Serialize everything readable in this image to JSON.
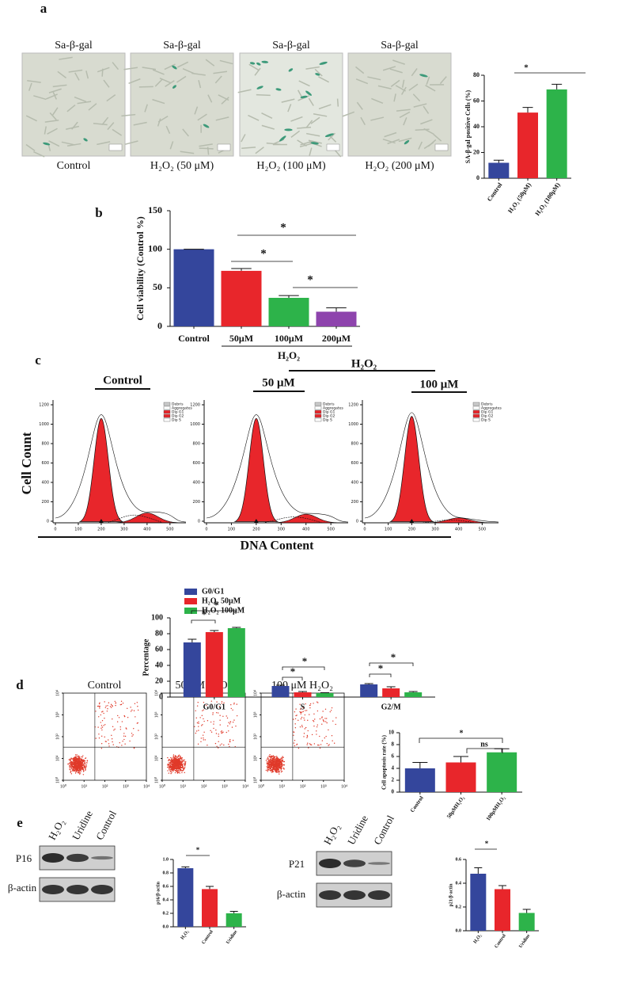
{
  "panels": {
    "a": {
      "label": "a",
      "images": [
        {
          "title": "Sa-β-gal",
          "caption": "Control"
        },
        {
          "title": "Sa-β-gal",
          "caption": "H₂O₂  (50 μM)"
        },
        {
          "title": "Sa-β-gal",
          "caption": "H₂O₂  (100  μM)"
        },
        {
          "title": "Sa-β-gal",
          "caption": "H₂O₂  (200  μM)"
        }
      ]
    },
    "b": {
      "label": "b"
    },
    "c": {
      "label": "c",
      "group_label": "H₂O₂",
      "conditions": [
        "Control",
        "50 μM",
        "100 μM"
      ],
      "y_label": "Cell Count",
      "x_label": "DNA Content",
      "legend": [
        "Debris",
        "Aggregates",
        "Dip G1",
        "Dip G2",
        "Dip S"
      ],
      "xticks": [
        0,
        100,
        200,
        300,
        400,
        500
      ],
      "yticks": [
        0,
        200,
        400,
        600,
        800,
        1000,
        1200
      ]
    },
    "d": {
      "label": "d",
      "conditions": [
        "Control",
        "50 μM H₂O₂",
        "100 μM H₂O₂"
      ],
      "decades": [
        {
          "value": 0,
          "label": "10⁰"
        },
        {
          "value": 1,
          "label": "10¹"
        },
        {
          "value": 2,
          "label": "10²"
        },
        {
          "value": 3,
          "label": "10³"
        },
        {
          "value": 4,
          "label": "10⁴"
        }
      ]
    },
    "e": {
      "label": "e",
      "lanes": [
        "H₂O₂",
        "Uridine",
        "Control"
      ],
      "blots": [
        {
          "protein": "P16",
          "loading": "β-actin"
        },
        {
          "protein": "P21",
          "loading": "β-actin"
        }
      ]
    }
  },
  "chart_data": [
    {
      "type": "bar",
      "y_label": "SA-β-gal positive Cells (%)",
      "categories": [
        "Control",
        "H₂O₂ (50μM)",
        "H₂O₂ (100μM)"
      ],
      "values": [
        12,
        51,
        69
      ],
      "errors": [
        2,
        4,
        4
      ],
      "colors": [
        "#34469c",
        "#e8262b",
        "#2db34a"
      ],
      "ylim": [
        0,
        80
      ],
      "yticks": [
        0,
        20,
        40,
        60,
        80
      ],
      "annotations": [
        "*"
      ]
    },
    {
      "type": "bar",
      "y_label": "Cell viability (Control %)",
      "x_label": "H₂O₂",
      "categories": [
        "Control",
        "50μM",
        "100μM",
        "200μM"
      ],
      "values": [
        100,
        72,
        37,
        19
      ],
      "errors": [
        0,
        3,
        3,
        5
      ],
      "colors": [
        "#34469c",
        "#e8262b",
        "#2db34a",
        "#8e44ad"
      ],
      "ylim": [
        0,
        150
      ],
      "yticks": [
        0,
        50,
        100,
        150
      ],
      "annotations": [
        "*",
        "*",
        "*"
      ]
    },
    {
      "type": "grouped-bar",
      "y_label": "Percentage",
      "categories": [
        "G0/G1",
        "S",
        "G2/M"
      ],
      "series": [
        {
          "name": "G0/G1",
          "color": "#34469c",
          "values": [
            69,
            14,
            16
          ],
          "errors": [
            4,
            1,
            1
          ]
        },
        {
          "name": "H₂O₂ 50μM",
          "color": "#e8262b",
          "values": [
            82,
            6,
            11
          ],
          "errors": [
            2,
            1,
            2
          ]
        },
        {
          "name": "H₂O₂ 100μM",
          "color": "#2db34a",
          "values": [
            87,
            5,
            6
          ],
          "errors": [
            1,
            0.5,
            1
          ]
        }
      ],
      "ylim": [
        0,
        100
      ],
      "yticks": [
        0,
        20,
        40,
        60,
        80,
        100
      ],
      "annotations": [
        "*",
        "*",
        "*",
        "*",
        "*",
        "*"
      ]
    },
    {
      "type": "bar",
      "y_label": "Cell apoptosis rate (%)",
      "categories": [
        "Control",
        "50μMH₂O₂",
        "100μMH₂O₂"
      ],
      "values": [
        4,
        5,
        6.7
      ],
      "errors": [
        1,
        1,
        0.6
      ],
      "colors": [
        "#34469c",
        "#e8262b",
        "#2db34a"
      ],
      "ylim": [
        0,
        10
      ],
      "yticks": [
        0,
        2,
        4,
        6,
        8,
        10
      ],
      "annotations": [
        "*",
        "ns"
      ]
    },
    {
      "type": "bar",
      "y_label": "p16/β-actin",
      "categories": [
        "H₂O₂",
        "Control",
        "Uridine"
      ],
      "values": [
        0.87,
        0.56,
        0.2
      ],
      "errors": [
        0.02,
        0.04,
        0.03
      ],
      "colors": [
        "#34469c",
        "#e8262b",
        "#2db34a"
      ],
      "ylim": [
        0,
        1
      ],
      "yticks": [
        {
          "value": 0,
          "label": "0.0"
        },
        0.2,
        0.4,
        0.6,
        0.8,
        {
          "value": 1,
          "label": "1.0"
        }
      ],
      "annotations": [
        "*"
      ]
    },
    {
      "type": "bar",
      "y_label": "p21/β-actin",
      "categories": [
        "H₂O₂",
        "Control",
        "Uridine"
      ],
      "values": [
        0.48,
        0.35,
        0.15
      ],
      "errors": [
        0.05,
        0.03,
        0.03
      ],
      "colors": [
        "#34469c",
        "#e8262b",
        "#2db34a"
      ],
      "ylim": [
        0,
        0.6
      ],
      "yticks": [
        {
          "value": 0,
          "label": "0.0"
        },
        0.2,
        0.4,
        0.6
      ],
      "annotations": [
        "*"
      ]
    }
  ]
}
